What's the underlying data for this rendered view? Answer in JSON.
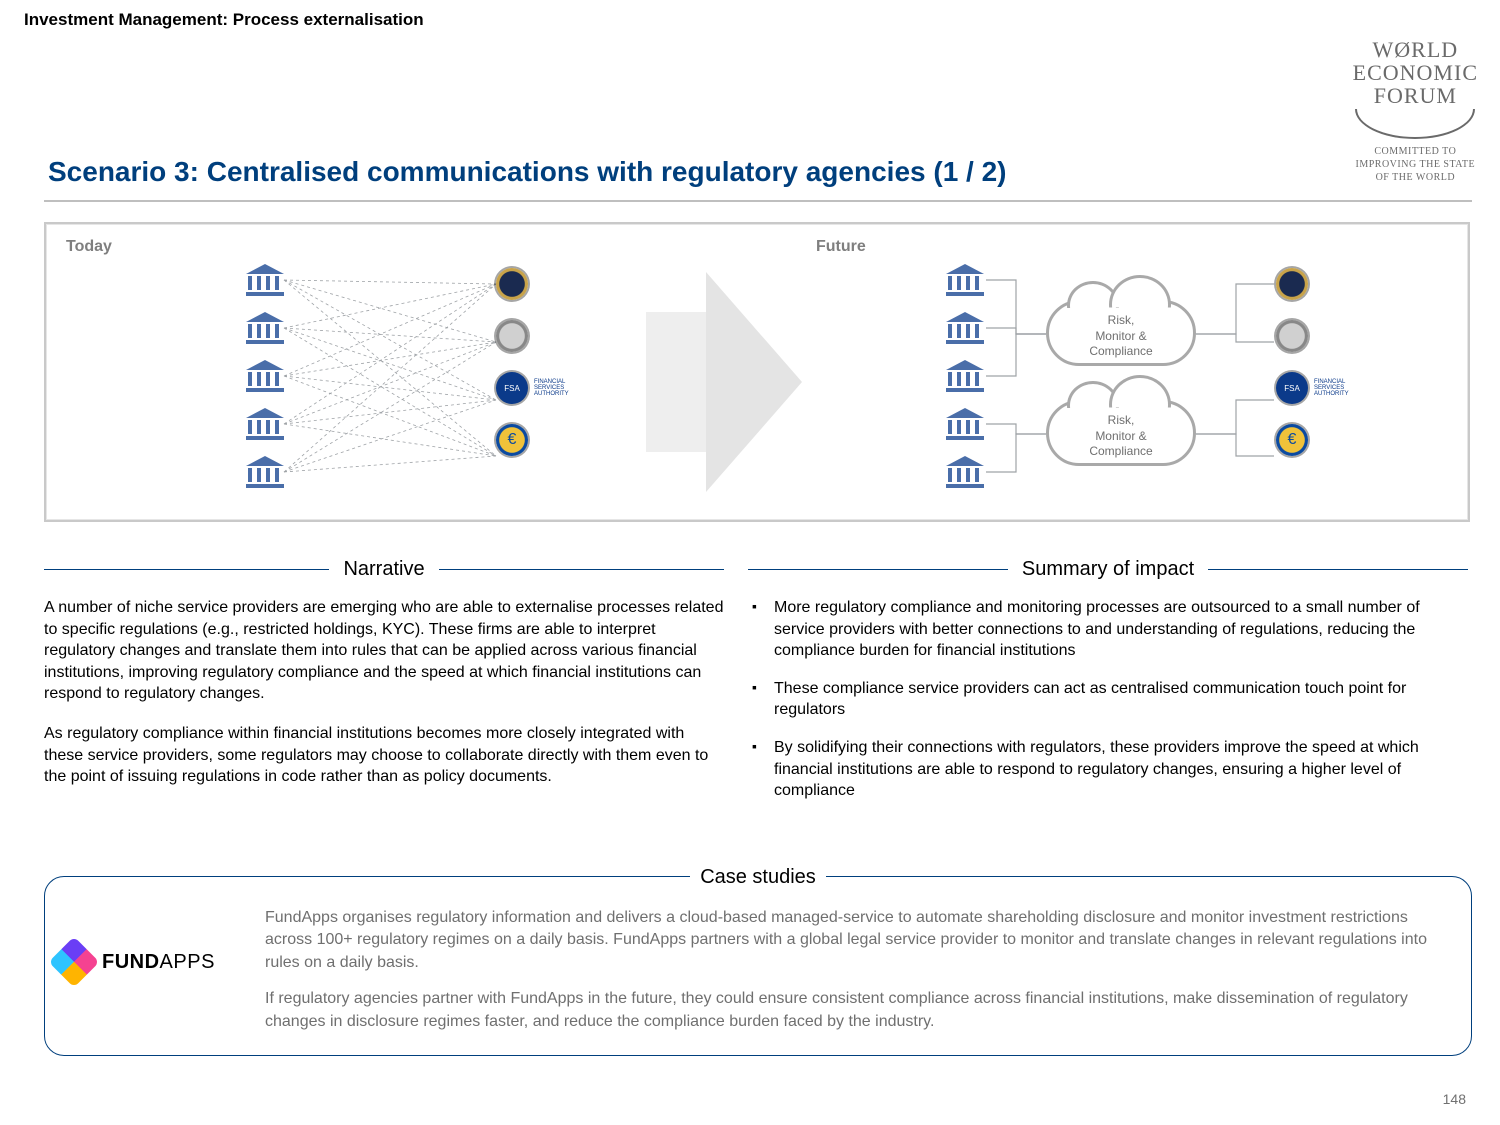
{
  "header": {
    "section_title": "Investment Management: Process externalisation"
  },
  "wef": {
    "line1": "WØRLD",
    "line2": "ECONOMIC",
    "line3": "FORUM",
    "tagline1": "COMMITTED TO",
    "tagline2": "IMPROVING THE STATE",
    "tagline3": "OF THE WORLD"
  },
  "scenario_heading": "Scenario 3: Centralised communications with regulatory agencies (1 / 2)",
  "diagram": {
    "today_label": "Today",
    "future_label": "Future",
    "cloud1": "Risk,\nMonitor &\nCompliance",
    "cloud2": "Risk,\nMonitor &\nCompliance",
    "fsa_text": "FINANCIAL\nSERVICES\nAUTHORITY",
    "euro": "€",
    "bank_count_left": 5,
    "regulator_count": 4,
    "colors": {
      "bank_fill": "#4a6ea9",
      "line_stroke": "#9fa3a7",
      "cloud_border": "#a9a9a9",
      "arrow_fill": "#e4e4e4",
      "box_border": "#c9c9c9"
    }
  },
  "narrative": {
    "title": "Narrative",
    "p1": "A number of niche service providers are emerging who are able to externalise processes related to specific regulations (e.g., restricted holdings, KYC). These firms are able to interpret regulatory changes and translate them into rules that can be applied across various financial institutions, improving regulatory compliance and the speed at which financial institutions can respond to regulatory changes.",
    "p2": "As regulatory compliance within financial institutions becomes more closely integrated with these service providers, some regulators may choose to collaborate directly with them even to the point of issuing regulations in code rather than as policy documents."
  },
  "impact": {
    "title": "Summary of impact",
    "items": [
      "More regulatory compliance and monitoring processes are outsourced to a small number of service providers with better connections to and understanding of regulations, reducing the compliance burden for financial institutions",
      "These compliance service providers can act as centralised communication touch point for regulators",
      "By solidifying their connections with regulators, these providers improve the speed at which financial institutions are able to respond to regulatory changes, ensuring a higher level of compliance"
    ]
  },
  "case": {
    "title": "Case studies",
    "logo_bold": "FUND",
    "logo_light": "APPS",
    "p1": "FundApps organises regulatory information and delivers a cloud-based managed-service to automate shareholding disclosure and monitor investment restrictions across 100+ regulatory regimes on a daily basis. FundApps partners with a global legal service provider to monitor and translate changes in relevant regulations into rules on a daily basis.",
    "p2": "If regulatory agencies partner with FundApps in the future, they could ensure consistent compliance across financial institutions, make dissemination of regulatory changes in disclosure regimes faster, and reduce the compliance burden faced by the industry."
  },
  "page_number": "148",
  "style": {
    "heading_color": "#003f7d",
    "text_color": "#000000",
    "muted_text": "#6f6f6f",
    "rule_color": "#003f7d"
  }
}
